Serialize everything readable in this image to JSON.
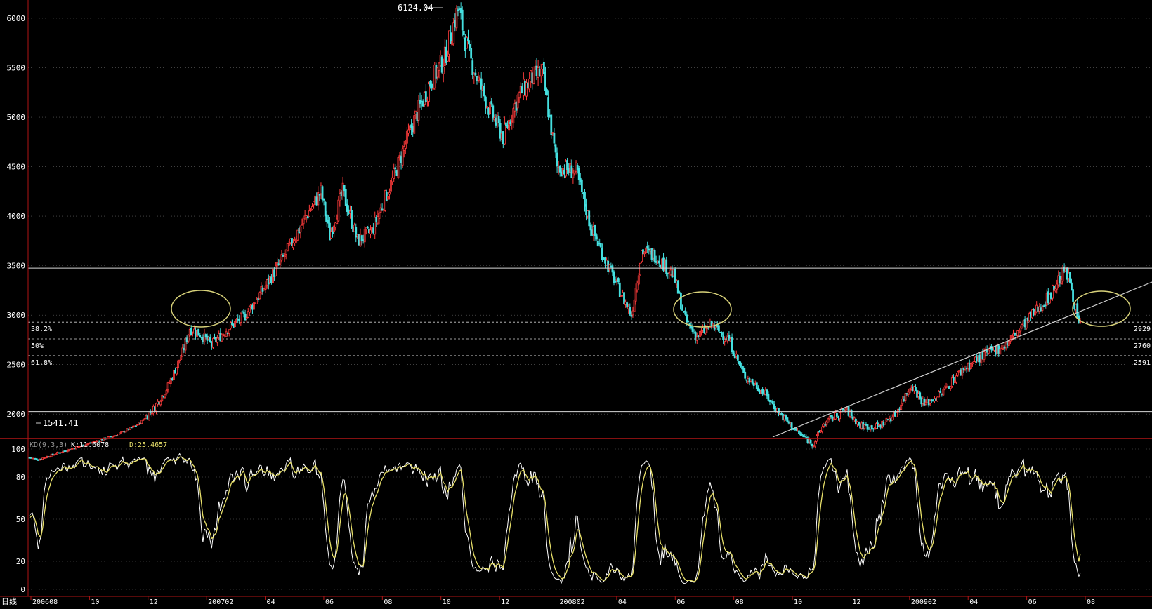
{
  "chart_data": [
    {
      "type": "candlestick",
      "title": "",
      "yticks": [
        6000,
        5500,
        5000,
        4500,
        4000,
        3500,
        3000,
        2500,
        2000
      ],
      "ylim": [
        1400,
        6150
      ],
      "x_ticks": [
        "200608",
        "10",
        "12",
        "200702",
        "04",
        "06",
        "08",
        "10",
        "12",
        "200802",
        "04",
        "06",
        "08",
        "10",
        "12",
        "200902",
        "04",
        "06",
        "08"
      ],
      "annotations": {
        "high": "6124.04",
        "low": "1541.41"
      },
      "horizontal_lines": [
        3475,
        2025
      ],
      "fibonacci": [
        {
          "label": "38.2%",
          "value_label": "2929",
          "value": 2929
        },
        {
          "label": "50%",
          "value_label": "2760",
          "value": 2760
        },
        {
          "label": "61.8%",
          "value_label": "2591",
          "value": 2591
        }
      ],
      "close_path": [
        {
          "i": 0,
          "v": 1560
        },
        {
          "i": 6,
          "v": 1541
        },
        {
          "i": 20,
          "v": 1610
        },
        {
          "i": 40,
          "v": 1700
        },
        {
          "i": 60,
          "v": 1790
        },
        {
          "i": 75,
          "v": 1900
        },
        {
          "i": 85,
          "v": 2050
        },
        {
          "i": 95,
          "v": 2280
        },
        {
          "i": 105,
          "v": 2620
        },
        {
          "i": 110,
          "v": 2870
        },
        {
          "i": 118,
          "v": 2800
        },
        {
          "i": 125,
          "v": 2700
        },
        {
          "i": 135,
          "v": 2850
        },
        {
          "i": 148,
          "v": 3000
        },
        {
          "i": 160,
          "v": 3250
        },
        {
          "i": 175,
          "v": 3600
        },
        {
          "i": 190,
          "v": 4000
        },
        {
          "i": 200,
          "v": 4250
        },
        {
          "i": 206,
          "v": 3800
        },
        {
          "i": 215,
          "v": 4250
        },
        {
          "i": 225,
          "v": 3750
        },
        {
          "i": 235,
          "v": 3850
        },
        {
          "i": 250,
          "v": 4400
        },
        {
          "i": 262,
          "v": 4900
        },
        {
          "i": 275,
          "v": 5350
        },
        {
          "i": 285,
          "v": 5600
        },
        {
          "i": 294,
          "v": 6100
        },
        {
          "i": 302,
          "v": 5600
        },
        {
          "i": 315,
          "v": 5100
        },
        {
          "i": 325,
          "v": 4800
        },
        {
          "i": 335,
          "v": 5200
        },
        {
          "i": 345,
          "v": 5400
        },
        {
          "i": 352,
          "v": 5450
        },
        {
          "i": 362,
          "v": 4500
        },
        {
          "i": 375,
          "v": 4450
        },
        {
          "i": 385,
          "v": 3900
        },
        {
          "i": 400,
          "v": 3400
        },
        {
          "i": 413,
          "v": 3000
        },
        {
          "i": 420,
          "v": 3650
        },
        {
          "i": 430,
          "v": 3600
        },
        {
          "i": 442,
          "v": 3400
        },
        {
          "i": 450,
          "v": 2950
        },
        {
          "i": 458,
          "v": 2780
        },
        {
          "i": 468,
          "v": 2900
        },
        {
          "i": 480,
          "v": 2750
        },
        {
          "i": 490,
          "v": 2400
        },
        {
          "i": 505,
          "v": 2200
        },
        {
          "i": 515,
          "v": 2000
        },
        {
          "i": 528,
          "v": 1800
        },
        {
          "i": 538,
          "v": 1700
        },
        {
          "i": 545,
          "v": 1900
        },
        {
          "i": 560,
          "v": 2050
        },
        {
          "i": 570,
          "v": 1880
        },
        {
          "i": 582,
          "v": 1870
        },
        {
          "i": 594,
          "v": 2000
        },
        {
          "i": 605,
          "v": 2300
        },
        {
          "i": 614,
          "v": 2100
        },
        {
          "i": 625,
          "v": 2200
        },
        {
          "i": 640,
          "v": 2450
        },
        {
          "i": 655,
          "v": 2600
        },
        {
          "i": 670,
          "v": 2700
        },
        {
          "i": 685,
          "v": 2950
        },
        {
          "i": 700,
          "v": 3200
        },
        {
          "i": 710,
          "v": 3450
        },
        {
          "i": 714,
          "v": 3350
        },
        {
          "i": 720,
          "v": 2900
        }
      ]
    },
    {
      "type": "line",
      "indicator_label": "KD(9,3,3)",
      "k_label": "K:11.6078",
      "d_label": "D:25.4657",
      "yticks": [
        100,
        80,
        50,
        20,
        0
      ],
      "ylim": [
        0,
        100
      ],
      "series": [
        {
          "name": "K",
          "color": "#ffffff"
        },
        {
          "name": "D",
          "color": "#e8e06a"
        }
      ]
    }
  ],
  "colors": {
    "up": "#ff3b3b",
    "down": "#45e0e0",
    "grid": "#666666",
    "axis": "#b01515",
    "text": "#ffffff",
    "ellipse": "#d8d27a",
    "trendline": "#d0d0d0"
  },
  "footer": {
    "period_label": "日线"
  }
}
